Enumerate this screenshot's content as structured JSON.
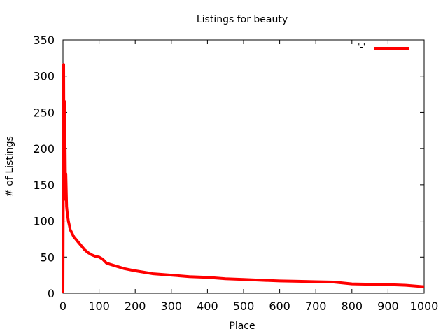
{
  "chart_data": {
    "type": "line",
    "title": "Listings for beauty",
    "xlabel": "Place",
    "ylabel": "# of Listings",
    "xlim": [
      0,
      1000
    ],
    "ylim": [
      0,
      350
    ],
    "xticks": [
      "0",
      "100",
      "200",
      "300",
      "400",
      "500",
      "600",
      "700",
      "800",
      "900",
      "1000"
    ],
    "yticks": [
      "0",
      "50",
      "100",
      "150",
      "200",
      "250",
      "300",
      "350"
    ],
    "grid": false,
    "legend_position": "top-right",
    "series": [
      {
        "name": "'-'",
        "color": "#ff0000",
        "x": [
          0,
          1,
          2,
          3,
          4,
          5,
          6,
          7,
          8,
          10,
          12,
          15,
          18,
          20,
          25,
          30,
          35,
          40,
          50,
          60,
          70,
          80,
          90,
          100,
          110,
          120,
          130,
          150,
          170,
          200,
          250,
          300,
          350,
          400,
          450,
          500,
          550,
          600,
          650,
          700,
          750,
          800,
          850,
          900,
          950,
          1000
        ],
        "values": [
          0,
          160,
          316,
          150,
          265,
          130,
          200,
          145,
          165,
          120,
          110,
          100,
          93,
          88,
          83,
          78,
          75,
          72,
          66,
          60,
          56,
          53,
          51,
          50,
          47,
          42,
          40,
          37,
          34,
          31,
          27,
          25,
          23,
          22,
          20,
          19,
          18,
          17,
          16.5,
          16,
          15.5,
          13,
          12.5,
          12,
          11,
          9
        ]
      }
    ]
  }
}
